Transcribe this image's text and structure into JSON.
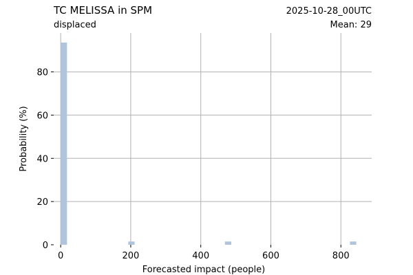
{
  "header": {
    "title": "TC MELISSA in SPM",
    "subtitle": "displaced",
    "date": "2025-10-28_00UTC",
    "mean": "Mean: 29"
  },
  "colors": {
    "bar": "#b0c4de",
    "grid": "#b0b0b0",
    "date": "#ff0000",
    "axis": "#000000"
  },
  "chart_data": {
    "type": "bar",
    "title": "TC MELISSA in SPM",
    "subtitle": "displaced",
    "xlabel": "Forecasted impact (people)",
    "ylabel": "Probability (%)",
    "xlim": [
      -20,
      888
    ],
    "ylim": [
      0,
      98
    ],
    "x_ticks": [
      0,
      200,
      400,
      600,
      800
    ],
    "y_ticks": [
      0,
      20,
      40,
      60,
      80
    ],
    "grid": true,
    "bars": [
      {
        "x0": 0,
        "x1": 18,
        "value": 93.6
      },
      {
        "x0": 193,
        "x1": 211,
        "value": 1.5
      },
      {
        "x0": 469,
        "x1": 487,
        "value": 1.5
      },
      {
        "x0": 826,
        "x1": 844,
        "value": 1.5
      }
    ]
  }
}
